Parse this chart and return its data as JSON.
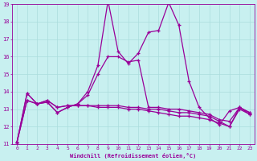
{
  "xlabel": "Windchill (Refroidissement éolien,°C)",
  "bg_color": "#c8f0f0",
  "line_color": "#990099",
  "grid_color": "#aadddd",
  "xlim": [
    -0.5,
    23.5
  ],
  "ylim": [
    11,
    19
  ],
  "yticks": [
    11,
    12,
    13,
    14,
    15,
    16,
    17,
    18,
    19
  ],
  "xticks": [
    0,
    1,
    2,
    3,
    4,
    5,
    6,
    7,
    8,
    9,
    10,
    11,
    12,
    13,
    14,
    15,
    16,
    17,
    18,
    19,
    20,
    21,
    22,
    23
  ],
  "series": [
    [
      11.1,
      13.9,
      13.3,
      13.4,
      12.8,
      13.1,
      13.3,
      14.0,
      15.5,
      19.2,
      16.3,
      15.6,
      16.2,
      17.4,
      17.5,
      19.1,
      17.8,
      14.6,
      13.1,
      12.5,
      12.1,
      12.9,
      13.1,
      12.8
    ],
    [
      11.1,
      13.9,
      13.3,
      13.4,
      12.8,
      13.1,
      13.3,
      13.8,
      15.0,
      16.0,
      16.0,
      15.7,
      15.8,
      13.1,
      13.1,
      13.0,
      13.0,
      12.9,
      12.8,
      12.7,
      12.4,
      12.3,
      13.1,
      12.8
    ],
    [
      11.1,
      13.5,
      13.3,
      13.5,
      13.1,
      13.2,
      13.2,
      13.2,
      13.2,
      13.2,
      13.2,
      13.1,
      13.1,
      13.0,
      13.0,
      12.9,
      12.8,
      12.8,
      12.7,
      12.6,
      12.3,
      12.0,
      13.1,
      12.7
    ],
    [
      11.1,
      13.5,
      13.3,
      13.5,
      13.1,
      13.2,
      13.2,
      13.2,
      13.1,
      13.1,
      13.1,
      13.0,
      13.0,
      12.9,
      12.8,
      12.7,
      12.6,
      12.6,
      12.5,
      12.4,
      12.2,
      12.0,
      13.0,
      12.7
    ]
  ]
}
